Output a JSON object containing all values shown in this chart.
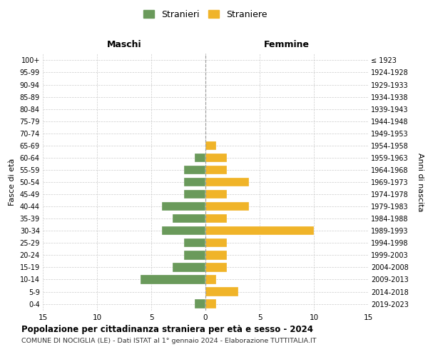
{
  "age_groups": [
    "0-4",
    "5-9",
    "10-14",
    "15-19",
    "20-24",
    "25-29",
    "30-34",
    "35-39",
    "40-44",
    "45-49",
    "50-54",
    "55-59",
    "60-64",
    "65-69",
    "70-74",
    "75-79",
    "80-84",
    "85-89",
    "90-94",
    "95-99",
    "100+"
  ],
  "birth_years": [
    "2019-2023",
    "2014-2018",
    "2009-2013",
    "2004-2008",
    "1999-2003",
    "1994-1998",
    "1989-1993",
    "1984-1988",
    "1979-1983",
    "1974-1978",
    "1969-1973",
    "1964-1968",
    "1959-1963",
    "1954-1958",
    "1949-1953",
    "1944-1948",
    "1939-1943",
    "1934-1938",
    "1929-1933",
    "1924-1928",
    "≤ 1923"
  ],
  "males": [
    1,
    0,
    6,
    3,
    2,
    2,
    4,
    3,
    4,
    2,
    2,
    2,
    1,
    0,
    0,
    0,
    0,
    0,
    0,
    0,
    0
  ],
  "females": [
    1,
    3,
    1,
    2,
    2,
    2,
    10,
    2,
    4,
    2,
    4,
    2,
    2,
    1,
    0,
    0,
    0,
    0,
    0,
    0,
    0
  ],
  "male_color": "#6a9a5b",
  "female_color": "#f0b429",
  "male_label": "Stranieri",
  "female_label": "Straniere",
  "title": "Popolazione per cittadinanza straniera per età e sesso - 2024",
  "subtitle": "COMUNE DI NOCIGLIA (LE) - Dati ISTAT al 1° gennaio 2024 - Elaborazione TUTTITALIA.IT",
  "xlabel_left": "Maschi",
  "xlabel_right": "Femmine",
  "ylabel_left": "Fasce di età",
  "ylabel_right": "Anni di nascita",
  "xlim": 15,
  "background_color": "#ffffff",
  "grid_color": "#cccccc"
}
